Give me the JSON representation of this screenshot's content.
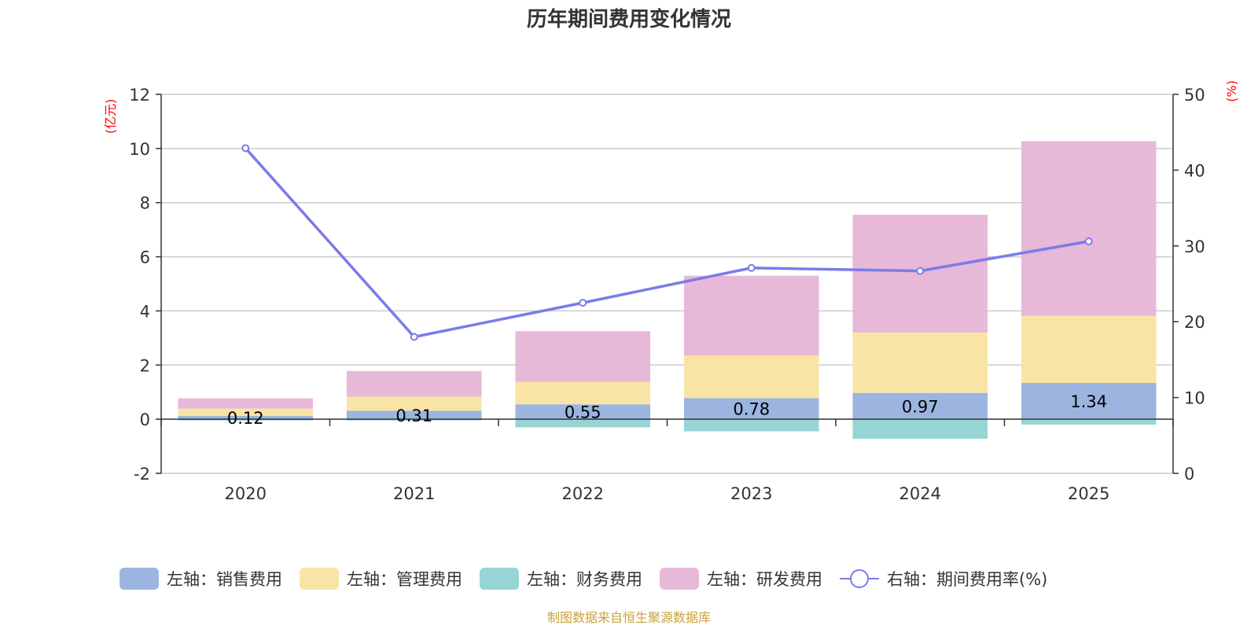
{
  "chart_data": {
    "type": "bar",
    "stacked": true,
    "title": "历年期间费用变化情况",
    "left_unit": "(亿元)",
    "right_unit": "(%)",
    "categories": [
      "2020",
      "2021",
      "2022",
      "2023",
      "2024",
      "2025"
    ],
    "left_axis": {
      "min": -2,
      "max": 12,
      "ticks": [
        -2,
        0,
        2,
        4,
        6,
        8,
        10,
        12
      ]
    },
    "right_axis": {
      "min": 0,
      "max": 50,
      "ticks": [
        0,
        10,
        20,
        30,
        40,
        50
      ]
    },
    "series": [
      {
        "name": "左轴：销售费用",
        "axis": "left",
        "kind": "bar",
        "color": "#9bb5e0",
        "values": [
          0.12,
          0.31,
          0.55,
          0.78,
          0.97,
          1.34
        ],
        "labels": [
          "0.12",
          "0.31",
          "0.55",
          "0.78",
          "0.97",
          "1.34"
        ]
      },
      {
        "name": "左轴：管理费用",
        "axis": "left",
        "kind": "bar",
        "color": "#f8e5a6",
        "values": [
          0.27,
          0.52,
          0.83,
          1.57,
          2.23,
          2.48
        ]
      },
      {
        "name": "左轴：财务费用",
        "axis": "left",
        "kind": "bar",
        "color": "#97d4d4",
        "values": [
          -0.05,
          -0.05,
          -0.3,
          -0.45,
          -0.72,
          -0.2
        ]
      },
      {
        "name": "左轴：研发费用",
        "axis": "left",
        "kind": "bar",
        "color": "#e8b8d8",
        "values": [
          0.38,
          0.95,
          1.87,
          2.95,
          4.35,
          6.45
        ]
      },
      {
        "name": "右轴：期间费用率(%)",
        "axis": "right",
        "kind": "line",
        "color": "#7b7bea",
        "values": [
          42.9,
          18.0,
          22.5,
          27.1,
          26.7,
          30.6
        ]
      }
    ]
  },
  "source": "制图数据来自恒生聚源数据库"
}
